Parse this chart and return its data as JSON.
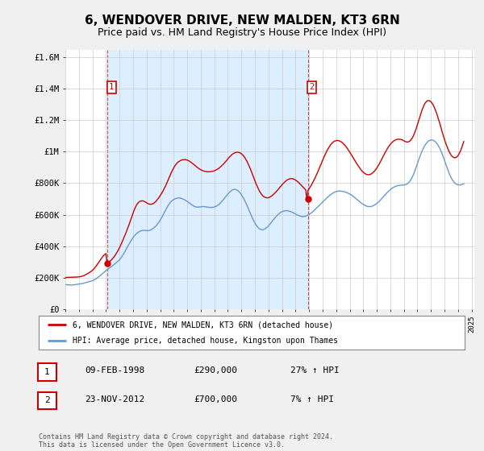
{
  "title": "6, WENDOVER DRIVE, NEW MALDEN, KT3 6RN",
  "subtitle": "Price paid vs. HM Land Registry's House Price Index (HPI)",
  "title_fontsize": 11,
  "subtitle_fontsize": 9,
  "ylabel_ticks": [
    "£0",
    "£200K",
    "£400K",
    "£600K",
    "£800K",
    "£1M",
    "£1.2M",
    "£1.4M",
    "£1.6M"
  ],
  "ytick_values": [
    0,
    200000,
    400000,
    600000,
    800000,
    1000000,
    1200000,
    1400000,
    1600000
  ],
  "ylim": [
    0,
    1650000
  ],
  "xlim_start": 1995.0,
  "xlim_end": 2025.2,
  "background_color": "#f0f0f0",
  "plot_bg_color": "#ffffff",
  "shade_color": "#ddeeff",
  "grid_color": "#cccccc",
  "sale1": {
    "date_x": 1998.11,
    "price": 290000,
    "label": "1"
  },
  "sale2": {
    "date_x": 2012.9,
    "price": 700000,
    "label": "2"
  },
  "hpi_color": "#6699cc",
  "price_color": "#cc0000",
  "legend_label_price": "6, WENDOVER DRIVE, NEW MALDEN, KT3 6RN (detached house)",
  "legend_label_hpi": "HPI: Average price, detached house, Kingston upon Thames",
  "table_rows": [
    {
      "num": "1",
      "date": "09-FEB-1998",
      "price": "£290,000",
      "change": "27% ↑ HPI"
    },
    {
      "num": "2",
      "date": "23-NOV-2012",
      "price": "£700,000",
      "change": "7% ↑ HPI"
    }
  ],
  "footer": "Contains HM Land Registry data © Crown copyright and database right 2024.\nThis data is licensed under the Open Government Licence v3.0.",
  "hpi_data_x": [
    1995.0,
    1995.08,
    1995.17,
    1995.25,
    1995.33,
    1995.42,
    1995.5,
    1995.58,
    1995.67,
    1995.75,
    1995.83,
    1995.92,
    1996.0,
    1996.08,
    1996.17,
    1996.25,
    1996.33,
    1996.42,
    1996.5,
    1996.58,
    1996.67,
    1996.75,
    1996.83,
    1996.92,
    1997.0,
    1997.08,
    1997.17,
    1997.25,
    1997.33,
    1997.42,
    1997.5,
    1997.58,
    1997.67,
    1997.75,
    1997.83,
    1997.92,
    1998.0,
    1998.08,
    1998.17,
    1998.25,
    1998.33,
    1998.42,
    1998.5,
    1998.58,
    1998.67,
    1998.75,
    1998.83,
    1998.92,
    1999.0,
    1999.08,
    1999.17,
    1999.25,
    1999.33,
    1999.42,
    1999.5,
    1999.58,
    1999.67,
    1999.75,
    1999.83,
    1999.92,
    2000.0,
    2000.08,
    2000.17,
    2000.25,
    2000.33,
    2000.42,
    2000.5,
    2000.58,
    2000.67,
    2000.75,
    2000.83,
    2000.92,
    2001.0,
    2001.08,
    2001.17,
    2001.25,
    2001.33,
    2001.42,
    2001.5,
    2001.58,
    2001.67,
    2001.75,
    2001.83,
    2001.92,
    2002.0,
    2002.08,
    2002.17,
    2002.25,
    2002.33,
    2002.42,
    2002.5,
    2002.58,
    2002.67,
    2002.75,
    2002.83,
    2002.92,
    2003.0,
    2003.08,
    2003.17,
    2003.25,
    2003.33,
    2003.42,
    2003.5,
    2003.58,
    2003.67,
    2003.75,
    2003.83,
    2003.92,
    2004.0,
    2004.08,
    2004.17,
    2004.25,
    2004.33,
    2004.42,
    2004.5,
    2004.58,
    2004.67,
    2004.75,
    2004.83,
    2004.92,
    2005.0,
    2005.08,
    2005.17,
    2005.25,
    2005.33,
    2005.42,
    2005.5,
    2005.58,
    2005.67,
    2005.75,
    2005.83,
    2005.92,
    2006.0,
    2006.08,
    2006.17,
    2006.25,
    2006.33,
    2006.42,
    2006.5,
    2006.58,
    2006.67,
    2006.75,
    2006.83,
    2006.92,
    2007.0,
    2007.08,
    2007.17,
    2007.25,
    2007.33,
    2007.42,
    2007.5,
    2007.58,
    2007.67,
    2007.75,
    2007.83,
    2007.92,
    2008.0,
    2008.08,
    2008.17,
    2008.25,
    2008.33,
    2008.42,
    2008.5,
    2008.58,
    2008.67,
    2008.75,
    2008.83,
    2008.92,
    2009.0,
    2009.08,
    2009.17,
    2009.25,
    2009.33,
    2009.42,
    2009.5,
    2009.58,
    2009.67,
    2009.75,
    2009.83,
    2009.92,
    2010.0,
    2010.08,
    2010.17,
    2010.25,
    2010.33,
    2010.42,
    2010.5,
    2010.58,
    2010.67,
    2010.75,
    2010.83,
    2010.92,
    2011.0,
    2011.08,
    2011.17,
    2011.25,
    2011.33,
    2011.42,
    2011.5,
    2011.58,
    2011.67,
    2011.75,
    2011.83,
    2011.92,
    2012.0,
    2012.08,
    2012.17,
    2012.25,
    2012.33,
    2012.42,
    2012.5,
    2012.58,
    2012.67,
    2012.75,
    2012.83,
    2012.92,
    2013.0,
    2013.08,
    2013.17,
    2013.25,
    2013.33,
    2013.42,
    2013.5,
    2013.58,
    2013.67,
    2013.75,
    2013.83,
    2013.92,
    2014.0,
    2014.08,
    2014.17,
    2014.25,
    2014.33,
    2014.42,
    2014.5,
    2014.58,
    2014.67,
    2014.75,
    2014.83,
    2014.92,
    2015.0,
    2015.08,
    2015.17,
    2015.25,
    2015.33,
    2015.42,
    2015.5,
    2015.58,
    2015.67,
    2015.75,
    2015.83,
    2015.92,
    2016.0,
    2016.08,
    2016.17,
    2016.25,
    2016.33,
    2016.42,
    2016.5,
    2016.58,
    2016.67,
    2016.75,
    2016.83,
    2016.92,
    2017.0,
    2017.08,
    2017.17,
    2017.25,
    2017.33,
    2017.42,
    2017.5,
    2017.58,
    2017.67,
    2017.75,
    2017.83,
    2017.92,
    2018.0,
    2018.08,
    2018.17,
    2018.25,
    2018.33,
    2018.42,
    2018.5,
    2018.58,
    2018.67,
    2018.75,
    2018.83,
    2018.92,
    2019.0,
    2019.08,
    2019.17,
    2019.25,
    2019.33,
    2019.42,
    2019.5,
    2019.58,
    2019.67,
    2019.75,
    2019.83,
    2019.92,
    2020.0,
    2020.08,
    2020.17,
    2020.25,
    2020.33,
    2020.42,
    2020.5,
    2020.58,
    2020.67,
    2020.75,
    2020.83,
    2020.92,
    2021.0,
    2021.08,
    2021.17,
    2021.25,
    2021.33,
    2021.42,
    2021.5,
    2021.58,
    2021.67,
    2021.75,
    2021.83,
    2021.92,
    2022.0,
    2022.08,
    2022.17,
    2022.25,
    2022.33,
    2022.42,
    2022.5,
    2022.58,
    2022.67,
    2022.75,
    2022.83,
    2022.92,
    2023.0,
    2023.08,
    2023.17,
    2023.25,
    2023.33,
    2023.42,
    2023.5,
    2023.58,
    2023.67,
    2023.75,
    2023.83,
    2023.92,
    2024.0,
    2024.08,
    2024.17,
    2024.25,
    2024.33,
    2024.42
  ],
  "hpi_data_y": [
    155000,
    154000,
    153500,
    153000,
    152500,
    152000,
    152500,
    153000,
    154000,
    155000,
    156000,
    157000,
    158000,
    159000,
    160000,
    161500,
    163000,
    165000,
    167000,
    169000,
    171000,
    173000,
    175000,
    177000,
    180000,
    183000,
    187000,
    191000,
    196000,
    201000,
    207000,
    213000,
    219000,
    226000,
    232000,
    238000,
    245000,
    250000,
    255000,
    260000,
    265000,
    270000,
    276000,
    282000,
    288000,
    294000,
    300000,
    306000,
    313000,
    322000,
    332000,
    343000,
    355000,
    368000,
    381000,
    394000,
    407000,
    420000,
    432000,
    443000,
    454000,
    464000,
    472000,
    479000,
    485000,
    490000,
    494000,
    497000,
    499000,
    500000,
    500000,
    499000,
    498000,
    498000,
    499000,
    501000,
    504000,
    508000,
    513000,
    519000,
    526000,
    534000,
    543000,
    553000,
    564000,
    576000,
    589000,
    603000,
    617000,
    631000,
    645000,
    657000,
    668000,
    677000,
    685000,
    691000,
    696000,
    700000,
    703000,
    705000,
    706000,
    706000,
    705000,
    703000,
    700000,
    697000,
    693000,
    689000,
    684000,
    679000,
    674000,
    668000,
    663000,
    658000,
    654000,
    651000,
    649000,
    648000,
    648000,
    649000,
    650000,
    651000,
    651000,
    651000,
    650000,
    649000,
    648000,
    647000,
    646000,
    646000,
    646000,
    647000,
    649000,
    651000,
    655000,
    659000,
    665000,
    671000,
    679000,
    687000,
    695000,
    704000,
    713000,
    722000,
    731000,
    739000,
    746000,
    752000,
    757000,
    760000,
    761000,
    760000,
    757000,
    752000,
    745000,
    737000,
    727000,
    716000,
    703000,
    689000,
    674000,
    658000,
    641000,
    624000,
    607000,
    590000,
    574000,
    559000,
    546000,
    534000,
    524000,
    516000,
    510000,
    506000,
    504000,
    504000,
    506000,
    510000,
    515000,
    521000,
    529000,
    537000,
    546000,
    555000,
    564000,
    573000,
    582000,
    590000,
    597000,
    604000,
    610000,
    615000,
    619000,
    622000,
    624000,
    625000,
    625000,
    624000,
    623000,
    621000,
    618000,
    615000,
    612000,
    608000,
    604000,
    600000,
    597000,
    594000,
    591000,
    589000,
    588000,
    588000,
    589000,
    591000,
    594000,
    597000,
    601000,
    606000,
    611000,
    617000,
    624000,
    631000,
    638000,
    645000,
    652000,
    659000,
    666000,
    673000,
    680000,
    687000,
    694000,
    701000,
    708000,
    715000,
    721000,
    727000,
    732000,
    737000,
    741000,
    744000,
    747000,
    749000,
    750000,
    750000,
    750000,
    749000,
    748000,
    746000,
    744000,
    741000,
    738000,
    735000,
    731000,
    727000,
    722000,
    717000,
    711000,
    705000,
    699000,
    693000,
    687000,
    681000,
    675000,
    670000,
    665000,
    661000,
    657000,
    654000,
    652000,
    651000,
    651000,
    652000,
    654000,
    657000,
    661000,
    666000,
    671000,
    677000,
    684000,
    691000,
    699000,
    707000,
    715000,
    723000,
    731000,
    739000,
    746000,
    753000,
    759000,
    765000,
    770000,
    774000,
    778000,
    781000,
    783000,
    785000,
    786000,
    787000,
    788000,
    788000,
    789000,
    790000,
    792000,
    796000,
    802000,
    810000,
    820000,
    833000,
    848000,
    865000,
    884000,
    904000,
    925000,
    946000,
    966000,
    985000,
    1003000,
    1019000,
    1033000,
    1045000,
    1055000,
    1063000,
    1069000,
    1073000,
    1075000,
    1075000,
    1073000,
    1069000,
    1063000,
    1055000,
    1045000,
    1033000,
    1019000,
    1003000,
    985000,
    966000,
    946000,
    925000,
    904000,
    884000,
    865000,
    848000,
    833000,
    820000,
    810000,
    802000,
    796000,
    792000,
    790000,
    789000,
    789000,
    790000,
    793000,
    797000
  ],
  "price_data_x": [
    1995.0,
    1995.08,
    1995.17,
    1995.25,
    1995.33,
    1995.42,
    1995.5,
    1995.58,
    1995.67,
    1995.75,
    1995.83,
    1995.92,
    1996.0,
    1996.08,
    1996.17,
    1996.25,
    1996.33,
    1996.42,
    1996.5,
    1996.58,
    1996.67,
    1996.75,
    1996.83,
    1996.92,
    1997.0,
    1997.08,
    1997.17,
    1997.25,
    1997.33,
    1997.42,
    1997.5,
    1997.58,
    1997.67,
    1997.75,
    1997.83,
    1997.92,
    1998.0,
    1998.08,
    1998.17,
    1998.25,
    1998.33,
    1998.42,
    1998.5,
    1998.58,
    1998.67,
    1998.75,
    1998.83,
    1998.92,
    1999.0,
    1999.08,
    1999.17,
    1999.25,
    1999.33,
    1999.42,
    1999.5,
    1999.58,
    1999.67,
    1999.75,
    1999.83,
    1999.92,
    2000.0,
    2000.08,
    2000.17,
    2000.25,
    2000.33,
    2000.42,
    2000.5,
    2000.58,
    2000.67,
    2000.75,
    2000.83,
    2000.92,
    2001.0,
    2001.08,
    2001.17,
    2001.25,
    2001.33,
    2001.42,
    2001.5,
    2001.58,
    2001.67,
    2001.75,
    2001.83,
    2001.92,
    2002.0,
    2002.08,
    2002.17,
    2002.25,
    2002.33,
    2002.42,
    2002.5,
    2002.58,
    2002.67,
    2002.75,
    2002.83,
    2002.92,
    2003.0,
    2003.08,
    2003.17,
    2003.25,
    2003.33,
    2003.42,
    2003.5,
    2003.58,
    2003.67,
    2003.75,
    2003.83,
    2003.92,
    2004.0,
    2004.08,
    2004.17,
    2004.25,
    2004.33,
    2004.42,
    2004.5,
    2004.58,
    2004.67,
    2004.75,
    2004.83,
    2004.92,
    2005.0,
    2005.08,
    2005.17,
    2005.25,
    2005.33,
    2005.42,
    2005.5,
    2005.58,
    2005.67,
    2005.75,
    2005.83,
    2005.92,
    2006.0,
    2006.08,
    2006.17,
    2006.25,
    2006.33,
    2006.42,
    2006.5,
    2006.58,
    2006.67,
    2006.75,
    2006.83,
    2006.92,
    2007.0,
    2007.08,
    2007.17,
    2007.25,
    2007.33,
    2007.42,
    2007.5,
    2007.58,
    2007.67,
    2007.75,
    2007.83,
    2007.92,
    2008.0,
    2008.08,
    2008.17,
    2008.25,
    2008.33,
    2008.42,
    2008.5,
    2008.58,
    2008.67,
    2008.75,
    2008.83,
    2008.92,
    2009.0,
    2009.08,
    2009.17,
    2009.25,
    2009.33,
    2009.42,
    2009.5,
    2009.58,
    2009.67,
    2009.75,
    2009.83,
    2009.92,
    2010.0,
    2010.08,
    2010.17,
    2010.25,
    2010.33,
    2010.42,
    2010.5,
    2010.58,
    2010.67,
    2010.75,
    2010.83,
    2010.92,
    2011.0,
    2011.08,
    2011.17,
    2011.25,
    2011.33,
    2011.42,
    2011.5,
    2011.58,
    2011.67,
    2011.75,
    2011.83,
    2011.92,
    2012.0,
    2012.08,
    2012.17,
    2012.25,
    2012.33,
    2012.42,
    2012.5,
    2012.58,
    2012.67,
    2012.75,
    2012.83,
    2012.92,
    2013.0,
    2013.08,
    2013.17,
    2013.25,
    2013.33,
    2013.42,
    2013.5,
    2013.58,
    2013.67,
    2013.75,
    2013.83,
    2013.92,
    2014.0,
    2014.08,
    2014.17,
    2014.25,
    2014.33,
    2014.42,
    2014.5,
    2014.58,
    2014.67,
    2014.75,
    2014.83,
    2014.92,
    2015.0,
    2015.08,
    2015.17,
    2015.25,
    2015.33,
    2015.42,
    2015.5,
    2015.58,
    2015.67,
    2015.75,
    2015.83,
    2015.92,
    2016.0,
    2016.08,
    2016.17,
    2016.25,
    2016.33,
    2016.42,
    2016.5,
    2016.58,
    2016.67,
    2016.75,
    2016.83,
    2016.92,
    2017.0,
    2017.08,
    2017.17,
    2017.25,
    2017.33,
    2017.42,
    2017.5,
    2017.58,
    2017.67,
    2017.75,
    2017.83,
    2017.92,
    2018.0,
    2018.08,
    2018.17,
    2018.25,
    2018.33,
    2018.42,
    2018.5,
    2018.58,
    2018.67,
    2018.75,
    2018.83,
    2018.92,
    2019.0,
    2019.08,
    2019.17,
    2019.25,
    2019.33,
    2019.42,
    2019.5,
    2019.58,
    2019.67,
    2019.75,
    2019.83,
    2019.92,
    2020.0,
    2020.08,
    2020.17,
    2020.25,
    2020.33,
    2020.42,
    2020.5,
    2020.58,
    2020.67,
    2020.75,
    2020.83,
    2020.92,
    2021.0,
    2021.08,
    2021.17,
    2021.25,
    2021.33,
    2021.42,
    2021.5,
    2021.58,
    2021.67,
    2021.75,
    2021.83,
    2021.92,
    2022.0,
    2022.08,
    2022.17,
    2022.25,
    2022.33,
    2022.42,
    2022.5,
    2022.58,
    2022.67,
    2022.75,
    2022.83,
    2022.92,
    2023.0,
    2023.08,
    2023.17,
    2023.25,
    2023.33,
    2023.42,
    2023.5,
    2023.58,
    2023.67,
    2023.75,
    2023.83,
    2023.92,
    2024.0,
    2024.08,
    2024.17,
    2024.25,
    2024.33,
    2024.42
  ],
  "price_data_y": [
    200000,
    200500,
    200800,
    201000,
    201200,
    201400,
    201600,
    201800,
    202000,
    202500,
    203000,
    203500,
    204000,
    205000,
    206500,
    208500,
    211000,
    214000,
    217500,
    221500,
    226000,
    230500,
    235000,
    240000,
    246000,
    253000,
    261000,
    270000,
    280000,
    290500,
    301000,
    312000,
    322500,
    332000,
    340000,
    347000,
    353000,
    290000,
    295000,
    300000,
    306000,
    313000,
    321000,
    330000,
    340000,
    351000,
    363000,
    376000,
    390000,
    405000,
    421000,
    438000,
    455000,
    472000,
    490000,
    508000,
    527000,
    547000,
    568000,
    589000,
    610000,
    629000,
    646000,
    660000,
    671000,
    679000,
    684000,
    687000,
    688000,
    687000,
    684000,
    680000,
    675000,
    671000,
    668000,
    666000,
    666000,
    668000,
    671000,
    676000,
    683000,
    691000,
    700000,
    710000,
    721000,
    732000,
    744000,
    757000,
    771000,
    786000,
    802000,
    819000,
    836000,
    853000,
    869000,
    884000,
    898000,
    910000,
    920000,
    928000,
    935000,
    940000,
    944000,
    947000,
    949000,
    950000,
    950000,
    949000,
    947000,
    944000,
    940000,
    935000,
    930000,
    924000,
    918000,
    912000,
    906000,
    900000,
    895000,
    890000,
    886000,
    882000,
    879000,
    877000,
    875000,
    874000,
    873000,
    873000,
    873000,
    874000,
    875000,
    877000,
    879000,
    882000,
    886000,
    890000,
    895000,
    901000,
    907000,
    914000,
    921000,
    929000,
    937000,
    946000,
    955000,
    963000,
    971000,
    978000,
    984000,
    989000,
    993000,
    996000,
    997000,
    997000,
    995000,
    992000,
    987000,
    981000,
    973000,
    963000,
    951000,
    938000,
    923000,
    907000,
    890000,
    872000,
    853000,
    834000,
    815000,
    797000,
    780000,
    764000,
    750000,
    738000,
    728000,
    720000,
    714000,
    710000,
    708000,
    707000,
    708000,
    711000,
    715000,
    720000,
    726000,
    733000,
    740000,
    748000,
    756000,
    764000,
    773000,
    782000,
    790000,
    798000,
    805000,
    812000,
    818000,
    822000,
    826000,
    828000,
    829000,
    829000,
    827000,
    824000,
    820000,
    815000,
    809000,
    802000,
    795000,
    787000,
    780000,
    772000,
    765000,
    757000,
    700000,
    755000,
    765000,
    776000,
    788000,
    801000,
    815000,
    830000,
    845000,
    861000,
    878000,
    895000,
    912000,
    929000,
    946000,
    963000,
    979000,
    994000,
    1009000,
    1022000,
    1034000,
    1044000,
    1053000,
    1060000,
    1065000,
    1069000,
    1071000,
    1072000,
    1071000,
    1069000,
    1065000,
    1060000,
    1054000,
    1047000,
    1039000,
    1030000,
    1020000,
    1009000,
    998000,
    987000,
    975000,
    963000,
    951000,
    939000,
    927000,
    916000,
    905000,
    895000,
    886000,
    877000,
    870000,
    864000,
    859000,
    856000,
    854000,
    854000,
    856000,
    859000,
    864000,
    870000,
    878000,
    887000,
    897000,
    909000,
    921000,
    934000,
    948000,
    962000,
    976000,
    990000,
    1003000,
    1016000,
    1028000,
    1038000,
    1048000,
    1056000,
    1063000,
    1069000,
    1073000,
    1077000,
    1079000,
    1080000,
    1080000,
    1079000,
    1077000,
    1074000,
    1070000,
    1066000,
    1063000,
    1062000,
    1063000,
    1067000,
    1074000,
    1083000,
    1096000,
    1111000,
    1129000,
    1150000,
    1172000,
    1195000,
    1219000,
    1242000,
    1264000,
    1283000,
    1299000,
    1311000,
    1320000,
    1325000,
    1326000,
    1324000,
    1318000,
    1309000,
    1297000,
    1282000,
    1264000,
    1244000,
    1222000,
    1199000,
    1175000,
    1150000,
    1125000,
    1101000,
    1078000,
    1056000,
    1036000,
    1018000,
    1002000,
    988000,
    977000,
    969000,
    964000,
    962000,
    963000,
    968000,
    976000,
    988000,
    1003000,
    1021000,
    1042000,
    1065000
  ]
}
